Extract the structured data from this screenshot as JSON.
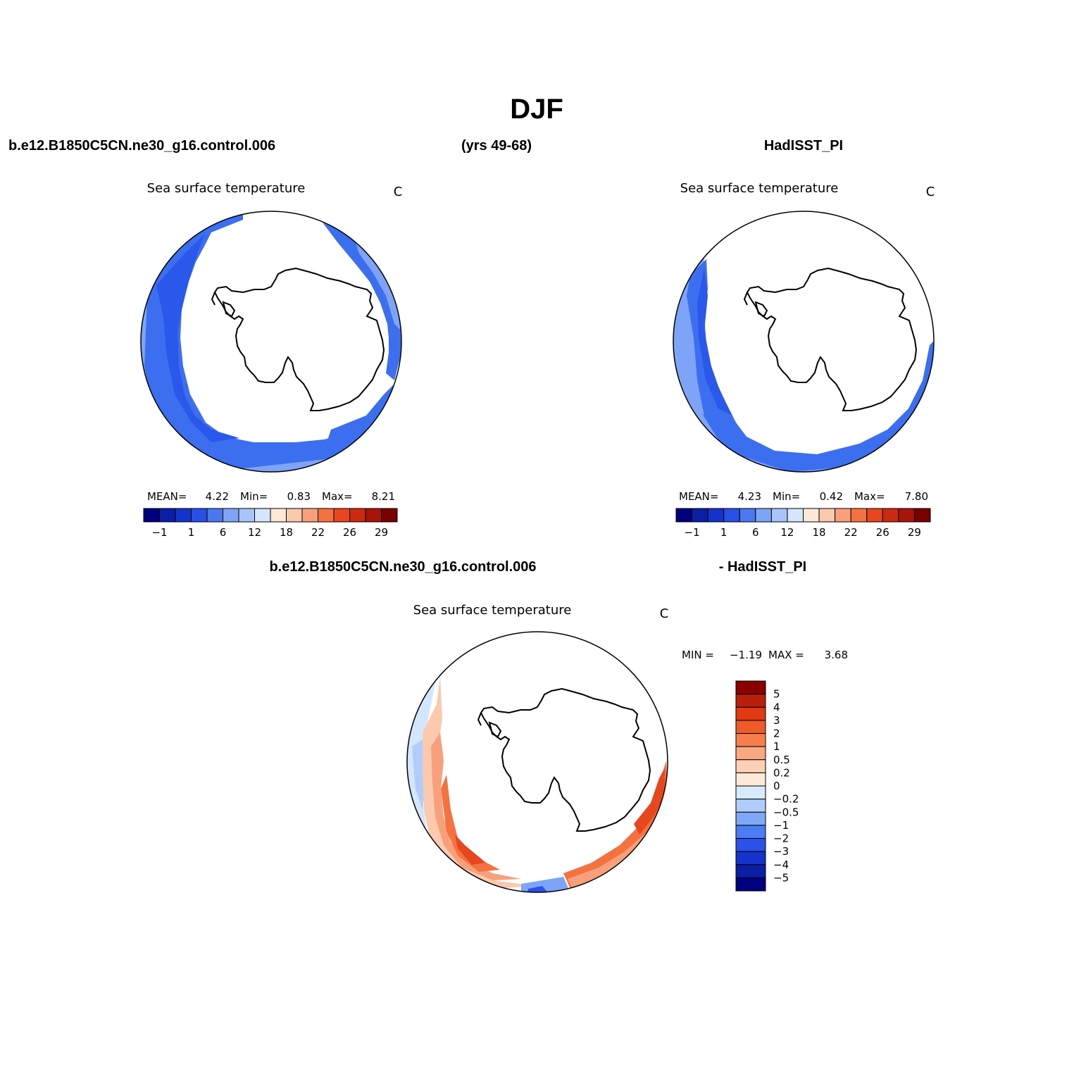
{
  "page": {
    "title": "DJF",
    "header_left": "b.e12.B1850C5CN.ne30_g16.control.006",
    "header_center": "(yrs 49-68)",
    "header_right": "HadISST_PI",
    "diff_header_left": "b.e12.B1850C5CN.ne30_g16.control.006",
    "diff_header_right": "- HadISST_PI"
  },
  "panels": [
    {
      "id": "model",
      "title": "Sea surface temperature",
      "units": "C",
      "stats": {
        "mean_label": "MEAN=",
        "mean": "4.22",
        "min_label": "Min=",
        "min": "0.83",
        "max_label": "Max=",
        "max": "8.21"
      }
    },
    {
      "id": "obs",
      "title": "Sea surface temperature",
      "units": "C",
      "stats": {
        "mean_label": "MEAN=",
        "mean": "4.23",
        "min_label": "Min=",
        "min": "0.42",
        "max_label": "Max=",
        "max": "7.80"
      }
    },
    {
      "id": "diff",
      "title": "Sea surface temperature",
      "units": "C",
      "stats": {
        "min_label": "MIN =",
        "min": "−1.19",
        "max_label": "MAX =",
        "max": "3.68"
      }
    }
  ],
  "colorbar_abs": {
    "colors": [
      "#00007f",
      "#0a1ea6",
      "#1432cc",
      "#2850e6",
      "#4a78f0",
      "#7da4f6",
      "#a8c4fa",
      "#d4e6fc",
      "#fde8d8",
      "#fbc9ae",
      "#f8a07c",
      "#f47240",
      "#e8461e",
      "#cc2a0e",
      "#a8140a",
      "#7a0000"
    ],
    "tick_labels": [
      "−1",
      "1",
      "6",
      "12",
      "18",
      "22",
      "26",
      "29"
    ]
  },
  "colorbar_diff": {
    "colors": [
      "#000080",
      "#0a1ea6",
      "#1432cc",
      "#2a52ea",
      "#4c7cf2",
      "#80a8f8",
      "#b0ccfa",
      "#d8eafc",
      "#fde9d8",
      "#fcd0b4",
      "#f9a982",
      "#f67d4c",
      "#ee5a28",
      "#e03a10",
      "#b8200a",
      "#8a0000"
    ],
    "labels": [
      "5",
      "4",
      "3",
      "2",
      "1",
      "0.5",
      "0.2",
      "0",
      "−0.2",
      "−0.5",
      "−1",
      "−2",
      "−3",
      "−4",
      "−5"
    ]
  }
}
